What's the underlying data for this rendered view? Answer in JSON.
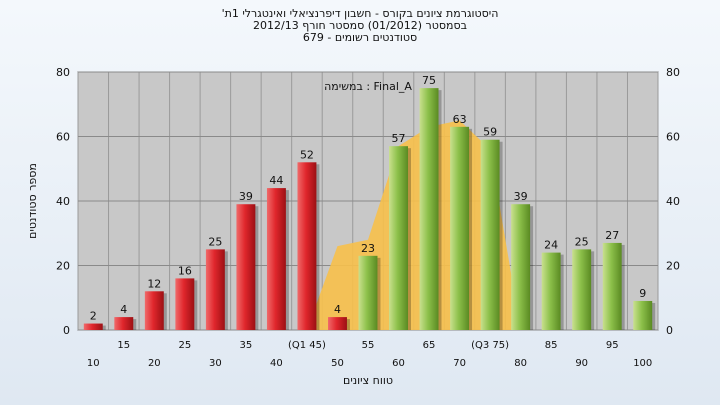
{
  "chart_data": {
    "type": "bar",
    "title": "'היסטוגרמת ציונים בקורס - חשבון דיפרנציאלי ואינטגרלי 1ת",
    "subtitle_1": "בסמסטר (01/2012) סמסטר חורף 2012/13",
    "subtitle_2": "סטודנטים רשומים - 679",
    "annotation": "במשימה : Final_A",
    "xlabel": "טווח ציונים",
    "ylabel": "מספר סטודנטים",
    "ylim": [
      0,
      80
    ],
    "yticks": [
      0,
      20,
      40,
      60,
      80
    ],
    "categories": [
      "10",
      "15",
      "20",
      "25",
      "30",
      "35",
      "40",
      "(Q1 45)",
      "50",
      "55",
      "60",
      "65",
      "70",
      "(Q3 75)",
      "80",
      "85",
      "90",
      "95",
      "100"
    ],
    "values": [
      2,
      4,
      12,
      16,
      25,
      39,
      44,
      52,
      4,
      23,
      57,
      75,
      63,
      59,
      39,
      24,
      25,
      27,
      9
    ],
    "bar_colors": [
      "red",
      "red",
      "red",
      "red",
      "red",
      "red",
      "red",
      "red",
      "red",
      "green",
      "green",
      "green",
      "green",
      "green",
      "green",
      "green",
      "green",
      "green",
      "green"
    ],
    "area_values": [
      0,
      0,
      0,
      0,
      0,
      0,
      0,
      0,
      26,
      28,
      57,
      63,
      65,
      56,
      0,
      0,
      0,
      0,
      0
    ],
    "colors": {
      "red": "#e0262c",
      "green": "#8cc04a",
      "area": "#f7c04a",
      "plot_bg": "#c8c8c8"
    }
  }
}
